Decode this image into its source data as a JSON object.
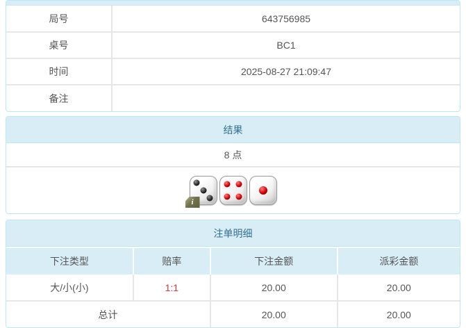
{
  "colors": {
    "panel_border": "#bce8f1",
    "heading_bg": "#d9edf7",
    "heading_text": "#31708f",
    "body_text": "#555555",
    "odds_red": "#e03333",
    "pip_red": "#cc0000",
    "pip_black": "#111111",
    "info_badge_olive": "#72724e"
  },
  "game_info": {
    "rows": [
      {
        "label": "局号",
        "value": "643756985"
      },
      {
        "label": "桌号",
        "value": "BC1"
      },
      {
        "label": "时间",
        "value": "2025-08-27 21:09:47"
      },
      {
        "label": "备注",
        "value": ""
      }
    ]
  },
  "result": {
    "heading": "结果",
    "points": "8 点",
    "dice": [
      {
        "value": 3,
        "color": "black"
      },
      {
        "value": 4,
        "color": "red"
      },
      {
        "value": 1,
        "color": "red"
      }
    ],
    "info_badge": "i"
  },
  "bets": {
    "heading": "注单明细",
    "columns": [
      "下注类型",
      "赔率",
      "下注金额",
      "派彩金额"
    ],
    "rows": [
      {
        "type": "大/小(小)",
        "odds": "1:1",
        "bet_amount": "20.00",
        "payout_amount": "20.00"
      }
    ],
    "total": {
      "label": "总计",
      "bet_amount": "20.00",
      "payout_amount": "20.00"
    }
  }
}
